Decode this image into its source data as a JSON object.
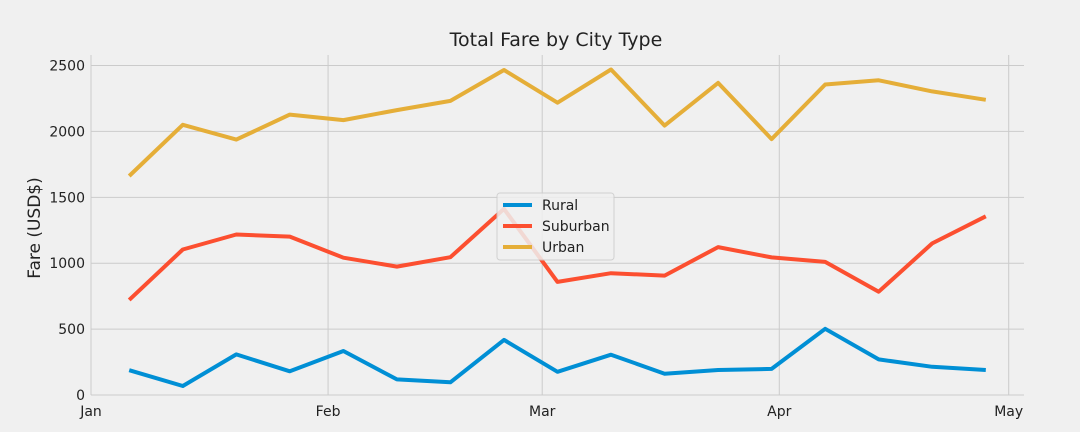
{
  "chart_data": {
    "type": "line",
    "title": "Total Fare by City Type",
    "xlabel": "",
    "ylabel": "Fare (USD$)",
    "x": [
      "2019-01-06",
      "2019-01-13",
      "2019-01-20",
      "2019-01-27",
      "2019-02-03",
      "2019-02-10",
      "2019-02-17",
      "2019-02-24",
      "2019-03-03",
      "2019-03-10",
      "2019-03-17",
      "2019-03-24",
      "2019-03-31",
      "2019-04-07",
      "2019-04-14",
      "2019-04-21",
      "2019-04-28"
    ],
    "xlim": [
      "2019-01-01",
      "2019-05-03"
    ],
    "xticks": [
      {
        "label": "Jan",
        "date": "2019-01-01"
      },
      {
        "label": "Feb",
        "date": "2019-02-01"
      },
      {
        "label": "Mar",
        "date": "2019-03-01"
      },
      {
        "label": "Apr",
        "date": "2019-04-01"
      },
      {
        "label": "May",
        "date": "2019-05-01"
      }
    ],
    "ylim": [
      0,
      2580
    ],
    "yticks": [
      0,
      500,
      1000,
      1500,
      2000,
      2500
    ],
    "grid": true,
    "legend_position": "center",
    "series": [
      {
        "name": "Rural",
        "color": "#008fd5",
        "values": [
          188,
          68,
          308,
          180,
          334,
          118,
          96,
          418,
          176,
          306,
          162,
          190,
          198,
          502,
          270,
          214,
          190
        ]
      },
      {
        "name": "Suburban",
        "color": "#fc4f30",
        "values": [
          722,
          1104,
          1218,
          1202,
          1042,
          974,
          1046,
          1412,
          858,
          924,
          906,
          1122,
          1044,
          1010,
          784,
          1150,
          1356
        ]
      },
      {
        "name": "Urban",
        "color": "#e5ae38",
        "values": [
          1662,
          2050,
          1938,
          2128,
          2086,
          2162,
          2232,
          2466,
          2218,
          2470,
          2044,
          2368,
          1942,
          2356,
          2388,
          2304,
          2240
        ]
      }
    ]
  }
}
